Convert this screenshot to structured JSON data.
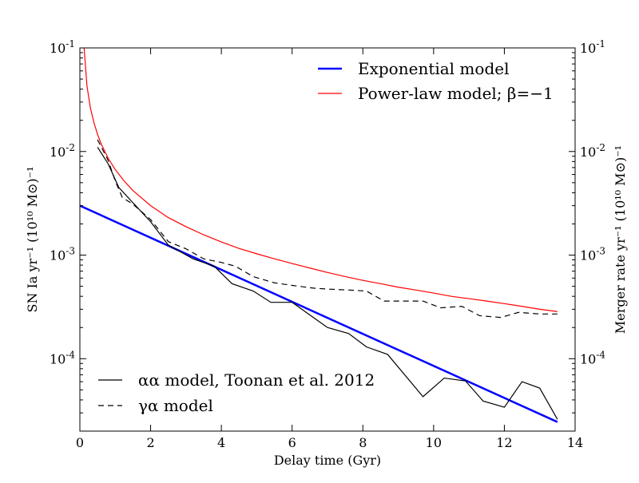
{
  "chart_data": {
    "type": "line",
    "xlabel": "Delay time (Gyr)",
    "ylabel_left": "SN Ia yr⁻¹ (10¹⁰ M⊙)⁻¹",
    "ylabel_right": "Merger rate  yr⁻¹ (10¹⁰ M⊙)⁻¹",
    "xlim": [
      0,
      14
    ],
    "ylim": [
      2e-05,
      0.1
    ],
    "yscale": "log",
    "x_ticks": [
      {
        "value": 0,
        "label": "0"
      },
      {
        "value": 2,
        "label": "2"
      },
      {
        "value": 4,
        "label": "4"
      },
      {
        "value": 6,
        "label": "6"
      },
      {
        "value": 8,
        "label": "8"
      },
      {
        "value": 10,
        "label": "10"
      },
      {
        "value": 12,
        "label": "12"
      },
      {
        "value": 14,
        "label": "14"
      }
    ],
    "y_ticks": [
      {
        "value": 0.0001,
        "base": "10",
        "exp": "-4"
      },
      {
        "value": 0.001,
        "base": "10",
        "exp": "-3"
      },
      {
        "value": 0.01,
        "base": "10",
        "exp": "-2"
      },
      {
        "value": 0.1,
        "base": "10",
        "exp": "-1"
      }
    ],
    "legend_top": {
      "placement": "top-right"
    },
    "legend_bottom": {
      "placement": "bottom-left"
    },
    "series": [
      {
        "name": "Exponential model",
        "color": "#0000ff",
        "style": "solid-thick",
        "legend": "top",
        "x": [
          0,
          13.5
        ],
        "y": [
          0.003,
          2.45e-05
        ]
      },
      {
        "name": "Power-law model; β=−1",
        "color": "#ff0000",
        "style": "solid",
        "legend": "top",
        "x": [
          0.12,
          0.2,
          0.3,
          0.4,
          0.5,
          0.6,
          0.8,
          1.0,
          1.25,
          1.5,
          2,
          2.5,
          3,
          3.5,
          4,
          4.5,
          5,
          5.5,
          6,
          6.5,
          7,
          7.5,
          8,
          8.5,
          9,
          9.5,
          10,
          10.5,
          11,
          11.5,
          12,
          12.5,
          13,
          13.5
        ],
        "y": [
          0.1,
          0.043,
          0.026,
          0.0189,
          0.0146,
          0.0119,
          0.0086,
          0.0067,
          0.0052,
          0.0042,
          0.003,
          0.0023,
          0.00188,
          0.00157,
          0.00134,
          0.00116,
          0.00103,
          0.00092,
          0.00083,
          0.00075,
          0.00068,
          0.00062,
          0.00057,
          0.00053,
          0.00049,
          0.00046,
          0.00043,
          0.0004,
          0.00038,
          0.00036,
          0.00034,
          0.00032,
          0.0003,
          0.000285
        ]
      },
      {
        "name": "αα model, Toonan et al. 2012",
        "color": "#000000",
        "style": "solid",
        "legend": "bottom",
        "x": [
          0.5,
          0.8,
          1.1,
          1.5,
          2.0,
          2.5,
          3.2,
          3.8,
          4.3,
          4.9,
          5.4,
          6.0,
          7.0,
          7.6,
          8.1,
          8.7,
          9.7,
          10.3,
          10.9,
          11.4,
          12.0,
          12.5,
          13.0,
          13.5
        ],
        "y": [
          0.011,
          0.0076,
          0.0045,
          0.0032,
          0.0021,
          0.00125,
          0.00092,
          0.00078,
          0.00053,
          0.00045,
          0.00035,
          0.00035,
          0.0002,
          0.000175,
          0.00013,
          0.00011,
          4.3e-05,
          6.5e-05,
          6.1e-05,
          3.9e-05,
          3.4e-05,
          6e-05,
          5.2e-05,
          2.6e-05
        ]
      },
      {
        "name": "γα model",
        "color": "#000000",
        "style": "dashed",
        "legend": "bottom",
        "x": [
          0.5,
          0.8,
          1.0,
          1.2,
          1.5,
          2.0,
          2.5,
          3.0,
          3.5,
          4.0,
          4.4,
          4.9,
          5.5,
          6.0,
          6.6,
          7.0,
          7.6,
          8.1,
          8.6,
          9.2,
          9.7,
          10.2,
          10.8,
          11.3,
          11.9,
          12.4,
          13.0,
          13.5
        ],
        "y": [
          0.013,
          0.0082,
          0.0052,
          0.0036,
          0.0031,
          0.0022,
          0.00135,
          0.00115,
          0.00092,
          0.00085,
          0.00078,
          0.00062,
          0.00054,
          0.00051,
          0.00048,
          0.00047,
          0.00046,
          0.00045,
          0.00036,
          0.00036,
          0.00036,
          0.00031,
          0.00032,
          0.00026,
          0.00025,
          0.00028,
          0.00027,
          0.00027
        ]
      }
    ]
  }
}
